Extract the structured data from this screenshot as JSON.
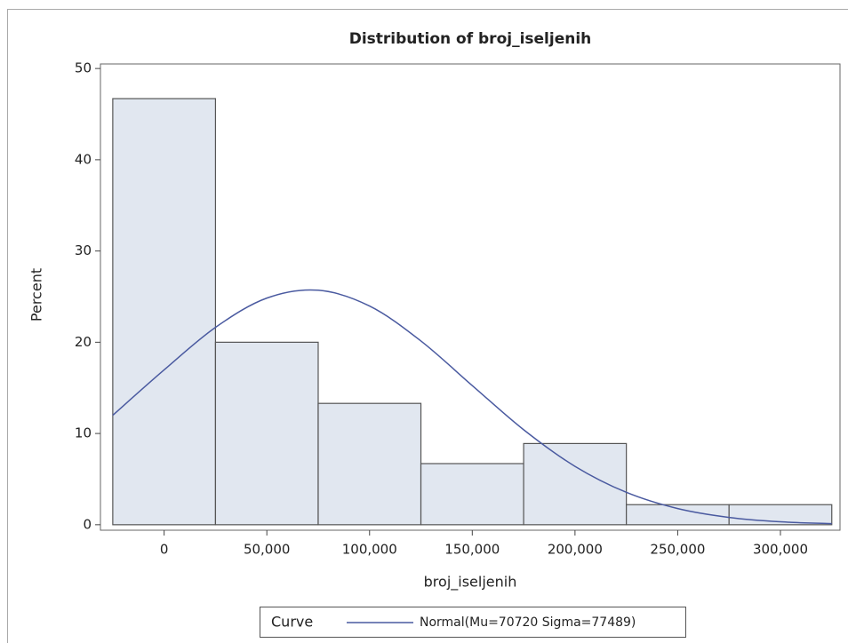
{
  "chart_data": {
    "type": "histogram",
    "title": "Distribution of broj_iseljenih",
    "x_label": "broj_iseljenih",
    "y_label": "Percent",
    "bins": [
      -25000,
      25000,
      75000,
      125000,
      175000,
      225000,
      275000,
      325000
    ],
    "values": [
      46.7,
      20,
      13.3,
      6.7,
      8.9,
      2.2,
      2.2
    ],
    "color": "#e1e7f0",
    "curve": {
      "name": "Normal(Mu=70720 Sigma=77489)",
      "color": "#4a5aa0",
      "x": [
        -25000,
        0,
        25000,
        50000,
        75000,
        100000,
        125000,
        150000,
        175000,
        200000,
        225000,
        250000,
        275000,
        300000,
        325000
      ],
      "values": [
        12.0,
        16.97,
        21.63,
        24.84,
        25.7,
        23.97,
        20.14,
        15.25,
        10.41,
        6.4,
        3.55,
        1.77,
        0.8,
        0.32,
        0.12
      ]
    },
    "legend_title": "Curve",
    "xlim": [
      -31000,
      329000
    ],
    "xticks": [
      0,
      {
        "value": 50000,
        "label": "50,000"
      },
      {
        "value": 100000,
        "label": "100,000"
      },
      {
        "value": 150000,
        "label": "150,000"
      },
      {
        "value": 200000,
        "label": "200,000"
      },
      {
        "value": 250000,
        "label": "250,000"
      },
      {
        "value": 300000,
        "label": "300,000"
      }
    ],
    "ylim": [
      -0.6,
      50.5
    ],
    "yticks": [
      0,
      10,
      20,
      30,
      40,
      50
    ]
  }
}
